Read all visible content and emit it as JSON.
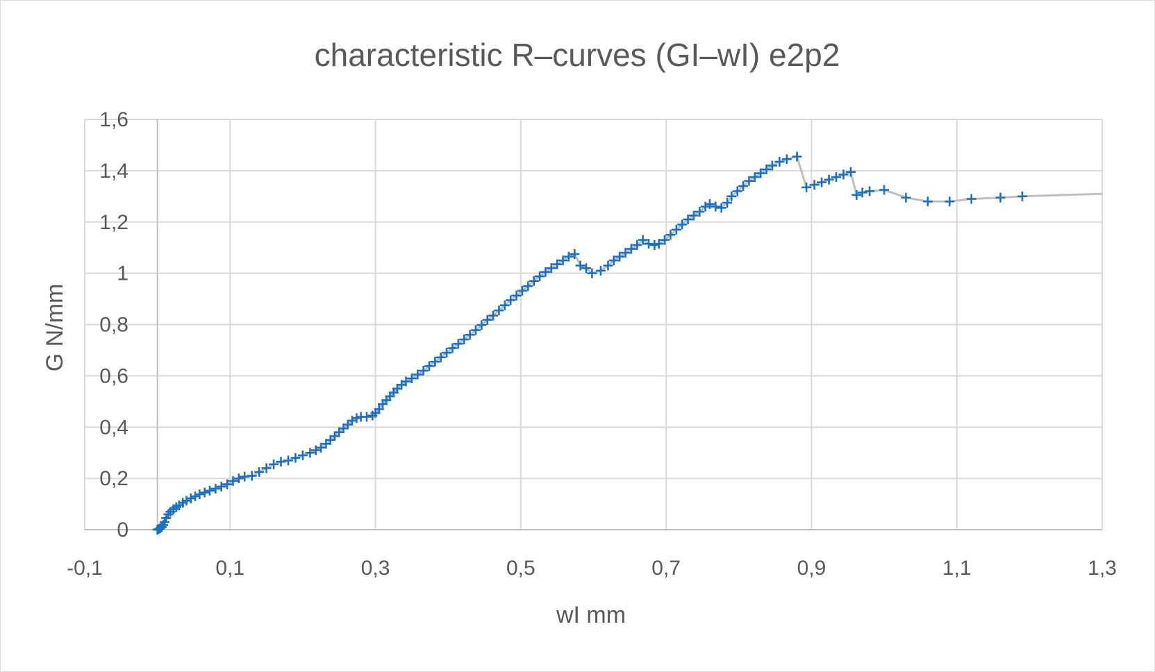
{
  "chart_data": {
    "type": "scatter",
    "title": "characteristic R–curves (GI–wI) e2p2",
    "xlabel": "wI mm",
    "ylabel": "G N/mm",
    "xlim": [
      -0.1,
      1.3
    ],
    "ylim": [
      0,
      1.6
    ],
    "x_ticks": [
      "-0,1",
      "0,1",
      "0,3",
      "0,5",
      "0,7",
      "0,9",
      "1,1",
      "1,3"
    ],
    "y_ticks": [
      "0",
      "0,2",
      "0,4",
      "0,6",
      "0,8",
      "1",
      "1,2",
      "1,4",
      "1,6"
    ],
    "grid": true,
    "legend": "none",
    "marker_color": "#1f6fbf",
    "line_color": "#bfbfbf",
    "line_end": [
      1.3,
      1.31
    ],
    "series": [
      {
        "marker": "plus",
        "points": [
          [
            0.0,
            0.0
          ],
          [
            0.002,
            0.003
          ],
          [
            0.004,
            0.006
          ],
          [
            0.006,
            0.01
          ],
          [
            0.008,
            0.018
          ],
          [
            0.01,
            0.03
          ],
          [
            0.012,
            0.045
          ],
          [
            0.015,
            0.06
          ],
          [
            0.018,
            0.07
          ],
          [
            0.022,
            0.08
          ],
          [
            0.026,
            0.088
          ],
          [
            0.03,
            0.095
          ],
          [
            0.035,
            0.105
          ],
          [
            0.04,
            0.113
          ],
          [
            0.046,
            0.122
          ],
          [
            0.052,
            0.13
          ],
          [
            0.058,
            0.138
          ],
          [
            0.065,
            0.145
          ],
          [
            0.072,
            0.152
          ],
          [
            0.08,
            0.16
          ],
          [
            0.088,
            0.168
          ],
          [
            0.096,
            0.177
          ],
          [
            0.104,
            0.19
          ],
          [
            0.112,
            0.2
          ],
          [
            0.12,
            0.207
          ],
          [
            0.13,
            0.21
          ],
          [
            0.14,
            0.225
          ],
          [
            0.15,
            0.24
          ],
          [
            0.16,
            0.255
          ],
          [
            0.17,
            0.265
          ],
          [
            0.18,
            0.27
          ],
          [
            0.19,
            0.28
          ],
          [
            0.2,
            0.29
          ],
          [
            0.21,
            0.3
          ],
          [
            0.218,
            0.31
          ],
          [
            0.225,
            0.32
          ],
          [
            0.232,
            0.335
          ],
          [
            0.238,
            0.35
          ],
          [
            0.244,
            0.365
          ],
          [
            0.25,
            0.38
          ],
          [
            0.256,
            0.395
          ],
          [
            0.262,
            0.41
          ],
          [
            0.268,
            0.425
          ],
          [
            0.274,
            0.435
          ],
          [
            0.28,
            0.44
          ],
          [
            0.288,
            0.44
          ],
          [
            0.296,
            0.445
          ],
          [
            0.3,
            0.455
          ],
          [
            0.305,
            0.47
          ],
          [
            0.31,
            0.49
          ],
          [
            0.315,
            0.505
          ],
          [
            0.32,
            0.52
          ],
          [
            0.325,
            0.535
          ],
          [
            0.33,
            0.55
          ],
          [
            0.336,
            0.565
          ],
          [
            0.342,
            0.578
          ],
          [
            0.35,
            0.59
          ],
          [
            0.358,
            0.605
          ],
          [
            0.366,
            0.62
          ],
          [
            0.374,
            0.638
          ],
          [
            0.382,
            0.655
          ],
          [
            0.39,
            0.672
          ],
          [
            0.398,
            0.69
          ],
          [
            0.406,
            0.708
          ],
          [
            0.414,
            0.725
          ],
          [
            0.422,
            0.742
          ],
          [
            0.43,
            0.76
          ],
          [
            0.438,
            0.778
          ],
          [
            0.446,
            0.798
          ],
          [
            0.454,
            0.818
          ],
          [
            0.462,
            0.835
          ],
          [
            0.47,
            0.855
          ],
          [
            0.478,
            0.875
          ],
          [
            0.486,
            0.895
          ],
          [
            0.494,
            0.913
          ],
          [
            0.502,
            0.932
          ],
          [
            0.51,
            0.95
          ],
          [
            0.518,
            0.97
          ],
          [
            0.526,
            0.988
          ],
          [
            0.534,
            1.005
          ],
          [
            0.542,
            1.02
          ],
          [
            0.55,
            1.035
          ],
          [
            0.558,
            1.05
          ],
          [
            0.566,
            1.065
          ],
          [
            0.574,
            1.075
          ],
          [
            0.582,
            1.03
          ],
          [
            0.59,
            1.02
          ],
          [
            0.598,
            1.0
          ],
          [
            0.61,
            1.01
          ],
          [
            0.62,
            1.03
          ],
          [
            0.628,
            1.05
          ],
          [
            0.636,
            1.065
          ],
          [
            0.644,
            1.08
          ],
          [
            0.652,
            1.095
          ],
          [
            0.66,
            1.11
          ],
          [
            0.668,
            1.13
          ],
          [
            0.676,
            1.115
          ],
          [
            0.684,
            1.11
          ],
          [
            0.69,
            1.115
          ],
          [
            0.698,
            1.13
          ],
          [
            0.706,
            1.15
          ],
          [
            0.714,
            1.17
          ],
          [
            0.722,
            1.19
          ],
          [
            0.73,
            1.21
          ],
          [
            0.738,
            1.225
          ],
          [
            0.746,
            1.24
          ],
          [
            0.754,
            1.26
          ],
          [
            0.76,
            1.27
          ],
          [
            0.768,
            1.26
          ],
          [
            0.776,
            1.255
          ],
          [
            0.784,
            1.275
          ],
          [
            0.79,
            1.3
          ],
          [
            0.798,
            1.32
          ],
          [
            0.806,
            1.34
          ],
          [
            0.814,
            1.36
          ],
          [
            0.822,
            1.375
          ],
          [
            0.83,
            1.39
          ],
          [
            0.838,
            1.405
          ],
          [
            0.846,
            1.42
          ],
          [
            0.856,
            1.435
          ],
          [
            0.866,
            1.445
          ],
          [
            0.88,
            1.455
          ],
          [
            0.893,
            1.335
          ],
          [
            0.904,
            1.345
          ],
          [
            0.914,
            1.355
          ],
          [
            0.924,
            1.365
          ],
          [
            0.934,
            1.375
          ],
          [
            0.944,
            1.385
          ],
          [
            0.954,
            1.395
          ],
          [
            0.962,
            1.305
          ],
          [
            0.97,
            1.315
          ],
          [
            0.98,
            1.32
          ],
          [
            1.0,
            1.325
          ],
          [
            1.03,
            1.295
          ],
          [
            1.06,
            1.28
          ],
          [
            1.09,
            1.28
          ],
          [
            1.12,
            1.29
          ],
          [
            1.16,
            1.295
          ],
          [
            1.19,
            1.3
          ]
        ]
      }
    ]
  }
}
